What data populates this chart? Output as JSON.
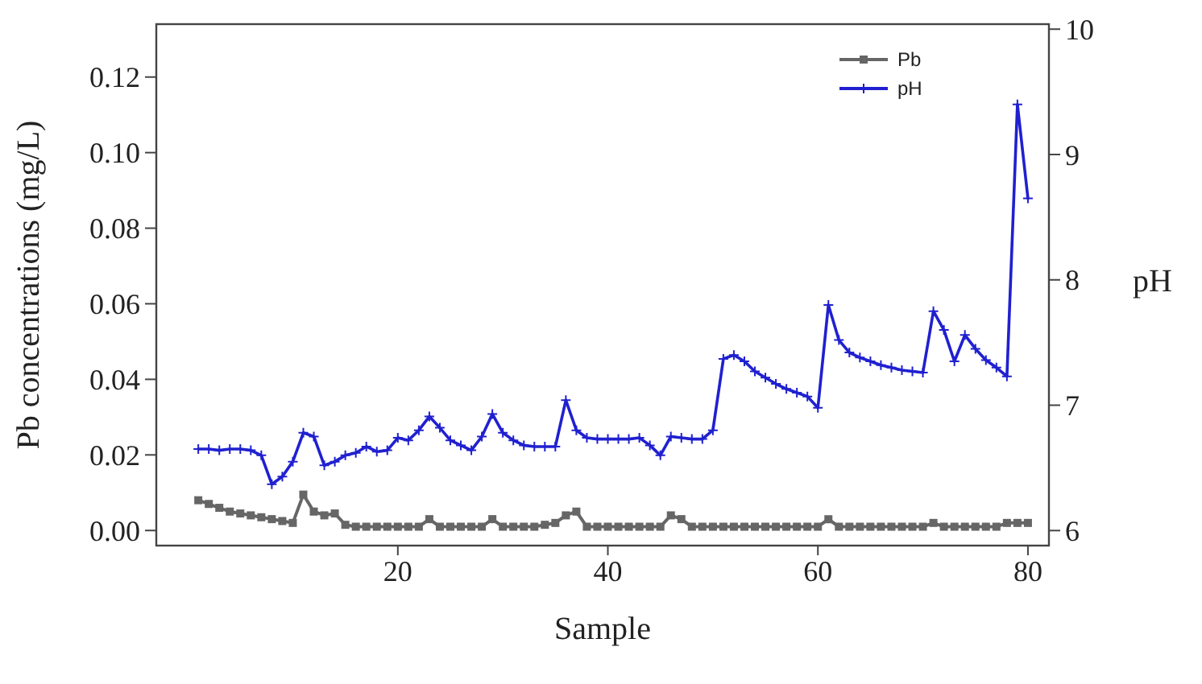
{
  "chart_data": {
    "type": "line",
    "xlabel": "Sample",
    "ylabel": "Pb concentrations (mg/L)",
    "y2label": "pH",
    "x": [
      1,
      2,
      3,
      4,
      5,
      6,
      7,
      8,
      9,
      10,
      11,
      12,
      13,
      14,
      15,
      16,
      17,
      18,
      19,
      20,
      21,
      22,
      23,
      24,
      25,
      26,
      27,
      28,
      29,
      30,
      31,
      32,
      33,
      34,
      35,
      36,
      37,
      38,
      39,
      40,
      41,
      42,
      43,
      44,
      45,
      46,
      47,
      48,
      49,
      50,
      51,
      52,
      53,
      54,
      55,
      56,
      57,
      58,
      59,
      60,
      61,
      62,
      63,
      64,
      65,
      66,
      67,
      68,
      69,
      70,
      71,
      72,
      73,
      74,
      75,
      76,
      77,
      78,
      79,
      80
    ],
    "xlim": [
      -3,
      82
    ],
    "xticks": [
      20,
      40,
      60,
      80
    ],
    "ylim": [
      -0.004,
      0.134
    ],
    "yticks": [
      {
        "value": 0,
        "label": "0.00"
      },
      {
        "value": 0.02,
        "label": "0.02"
      },
      {
        "value": 0.04,
        "label": "0.04"
      },
      {
        "value": 0.06,
        "label": "0.06"
      },
      {
        "value": 0.08,
        "label": "0.08"
      },
      {
        "value": 0.1,
        "label": "0.10"
      },
      {
        "value": 0.12,
        "label": "0.12"
      }
    ],
    "y2lim": [
      5.88,
      10.04
    ],
    "y2ticks": [
      6,
      7,
      8,
      9,
      10
    ],
    "grid": false,
    "legend": "top right",
    "series": [
      {
        "name": "Pb",
        "color": "#666666",
        "marker": "square",
        "values": [
          0.008,
          0.007,
          0.006,
          0.005,
          0.0045,
          0.004,
          0.0035,
          0.003,
          0.0025,
          0.002,
          0.0095,
          0.005,
          0.004,
          0.0045,
          0.0015,
          0.001,
          0.001,
          0.001,
          0.001,
          0.001,
          0.001,
          0.001,
          0.003,
          0.001,
          0.001,
          0.001,
          0.001,
          0.001,
          0.003,
          0.001,
          0.001,
          0.001,
          0.001,
          0.0015,
          0.002,
          0.004,
          0.005,
          0.001,
          0.001,
          0.001,
          0.001,
          0.001,
          0.001,
          0.001,
          0.001,
          0.004,
          0.003,
          0.001,
          0.001,
          0.001,
          0.001,
          0.001,
          0.001,
          0.001,
          0.001,
          0.001,
          0.001,
          0.001,
          0.001,
          0.001,
          0.003,
          0.001,
          0.001,
          0.001,
          0.001,
          0.001,
          0.001,
          0.001,
          0.001,
          0.001,
          0.002,
          0.001,
          0.001,
          0.001,
          0.001,
          0.001,
          0.001,
          0.002,
          0.002,
          0.002
        ]
      },
      {
        "name": "pH",
        "color": "#2020d0",
        "marker": "cross",
        "axis": "y2",
        "values": [
          6.65,
          6.65,
          6.64,
          6.65,
          6.65,
          6.64,
          6.6,
          6.37,
          6.43,
          6.55,
          6.78,
          6.75,
          6.52,
          6.55,
          6.6,
          6.62,
          6.67,
          6.63,
          6.64,
          6.74,
          6.72,
          6.8,
          6.91,
          6.82,
          6.72,
          6.68,
          6.64,
          6.75,
          6.93,
          6.78,
          6.72,
          6.68,
          6.67,
          6.67,
          6.67,
          7.04,
          6.8,
          6.74,
          6.73,
          6.73,
          6.73,
          6.73,
          6.74,
          6.68,
          6.6,
          6.75,
          6.74,
          6.73,
          6.73,
          6.8,
          7.37,
          7.4,
          7.35,
          7.27,
          7.22,
          7.17,
          7.13,
          7.1,
          7.07,
          6.98,
          7.8,
          7.52,
          7.42,
          7.38,
          7.35,
          7.32,
          7.3,
          7.28,
          7.27,
          7.26,
          7.75,
          7.6,
          7.35,
          7.56,
          7.45,
          7.36,
          7.3,
          7.23,
          9.4,
          8.65
        ]
      }
    ]
  }
}
